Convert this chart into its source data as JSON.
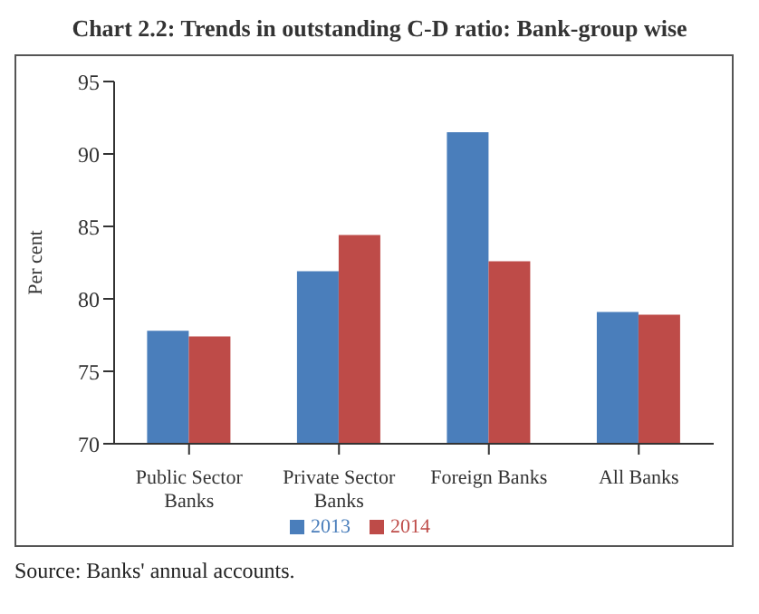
{
  "chart_data": {
    "type": "bar",
    "title": "Chart 2.2: Trends in outstanding C-D ratio: Bank-group wise",
    "ylabel": "Per cent",
    "categories": [
      "Public Sector Banks",
      "Private Sector Banks",
      "Foreign Banks",
      "All Banks"
    ],
    "series": [
      {
        "name": "2013",
        "color": "#4a7ebb",
        "values": [
          77.8,
          81.9,
          91.5,
          79.1
        ]
      },
      {
        "name": "2014",
        "color": "#be4b48",
        "values": [
          77.4,
          84.4,
          82.6,
          78.9
        ]
      }
    ],
    "ylim": [
      70,
      95
    ],
    "yticks": [
      70,
      75,
      80,
      85,
      90,
      95
    ],
    "grid": false,
    "legend": "bottom",
    "annotations": [
      "Source: Banks' annual accounts."
    ]
  }
}
